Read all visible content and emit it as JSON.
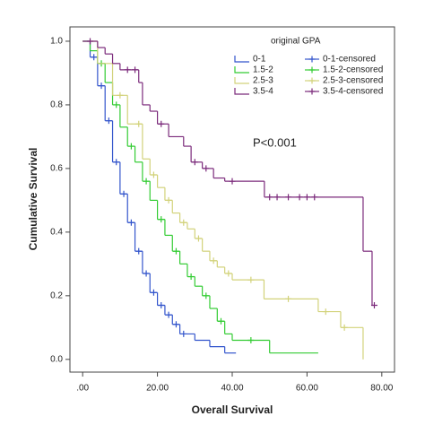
{
  "chart_data": {
    "type": "step",
    "xlabel": "Overall Survival",
    "ylabel": "Cumulative Survival",
    "annotation": "P<0.001",
    "legend_title": "original GPA",
    "legend": "upper right",
    "xlim": [
      -3.4,
      83.4
    ],
    "ylim": [
      -0.04,
      1.045
    ],
    "xticks": [
      {
        "value": 0,
        "label": ".00"
      },
      {
        "value": 20,
        "label": "20.00"
      },
      {
        "value": 40,
        "label": "40.00"
      },
      {
        "value": 60,
        "label": "60.00"
      },
      {
        "value": 80,
        "label": "80.00"
      }
    ],
    "yticks": [
      {
        "value": 0,
        "label": "0.0"
      },
      0.2,
      0.4,
      0.6,
      0.8,
      {
        "value": 1,
        "label": "1.0"
      }
    ],
    "series": [
      {
        "name": "0-1",
        "color": "#3355cc",
        "kind": "curve",
        "x": [
          0,
          2,
          4,
          6,
          8,
          10,
          12,
          14,
          16,
          18,
          20,
          22,
          24,
          26,
          30,
          34,
          38,
          41
        ],
        "values": [
          1,
          0.95,
          0.86,
          0.75,
          0.62,
          0.52,
          0.43,
          0.34,
          0.27,
          0.21,
          0.17,
          0.14,
          0.11,
          0.08,
          0.06,
          0.04,
          0.02,
          0.02
        ]
      },
      {
        "name": "0-1-censored",
        "color": "#3355cc",
        "kind": "censored",
        "x": [
          3,
          5,
          7,
          9,
          11,
          13,
          15,
          17,
          19,
          21,
          23,
          25,
          27
        ],
        "values": [
          0.95,
          0.86,
          0.75,
          0.62,
          0.52,
          0.43,
          0.34,
          0.27,
          0.21,
          0.17,
          0.14,
          0.11,
          0.08
        ]
      },
      {
        "name": "1.5-2",
        "color": "#33cc33",
        "kind": "curve",
        "x": [
          0,
          2,
          4,
          6,
          8,
          10,
          12,
          14,
          16,
          18,
          20,
          22,
          24,
          26,
          28,
          30,
          32,
          34,
          36,
          38,
          40,
          50,
          63
        ],
        "values": [
          1,
          0.97,
          0.93,
          0.87,
          0.8,
          0.73,
          0.67,
          0.62,
          0.56,
          0.5,
          0.44,
          0.39,
          0.34,
          0.3,
          0.26,
          0.23,
          0.2,
          0.16,
          0.12,
          0.08,
          0.06,
          0.02,
          0.02
        ]
      },
      {
        "name": "1.5-2-censored",
        "color": "#33cc33",
        "kind": "censored",
        "x": [
          5,
          9,
          13,
          17,
          21,
          25,
          29,
          33,
          37,
          45
        ],
        "values": [
          0.93,
          0.8,
          0.67,
          0.56,
          0.44,
          0.34,
          0.26,
          0.2,
          0.12,
          0.06
        ]
      },
      {
        "name": "2.5-3",
        "color": "#d2d27a",
        "kind": "curve",
        "x": [
          0,
          4,
          8,
          12,
          16,
          18,
          20,
          22,
          24,
          26,
          28,
          30,
          32,
          34,
          36,
          38,
          40,
          48.5,
          63,
          69,
          75
        ],
        "values": [
          1,
          0.93,
          0.83,
          0.74,
          0.63,
          0.58,
          0.54,
          0.5,
          0.46,
          0.43,
          0.41,
          0.38,
          0.34,
          0.31,
          0.29,
          0.27,
          0.25,
          0.19,
          0.15,
          0.1,
          0
        ]
      },
      {
        "name": "2.5-3-censored",
        "color": "#d2d27a",
        "kind": "censored",
        "x": [
          10,
          15,
          19,
          23,
          27,
          31,
          35,
          39,
          45,
          55,
          65,
          70
        ],
        "values": [
          0.83,
          0.74,
          0.58,
          0.5,
          0.43,
          0.38,
          0.31,
          0.27,
          0.25,
          0.19,
          0.15,
          0.1
        ]
      },
      {
        "name": "3.5-4",
        "color": "#7b2a7b",
        "kind": "curve",
        "x": [
          0,
          4,
          6,
          8,
          10,
          15,
          16,
          18,
          20,
          23,
          27,
          29,
          32,
          35,
          38,
          48.6,
          75,
          77.4,
          78
        ],
        "values": [
          1,
          0.98,
          0.96,
          0.93,
          0.91,
          0.87,
          0.8,
          0.78,
          0.74,
          0.7,
          0.67,
          0.62,
          0.6,
          0.57,
          0.56,
          0.51,
          0.34,
          0.17,
          0.17
        ]
      },
      {
        "name": "3.5-4-censored",
        "color": "#7b2a7b",
        "kind": "censored",
        "x": [
          2,
          12,
          14,
          21,
          30,
          33,
          40,
          50,
          52,
          55,
          58,
          60,
          62,
          78
        ],
        "values": [
          1,
          0.91,
          0.91,
          0.74,
          0.62,
          0.6,
          0.56,
          0.51,
          0.51,
          0.51,
          0.51,
          0.51,
          0.51,
          0.17
        ]
      }
    ]
  }
}
